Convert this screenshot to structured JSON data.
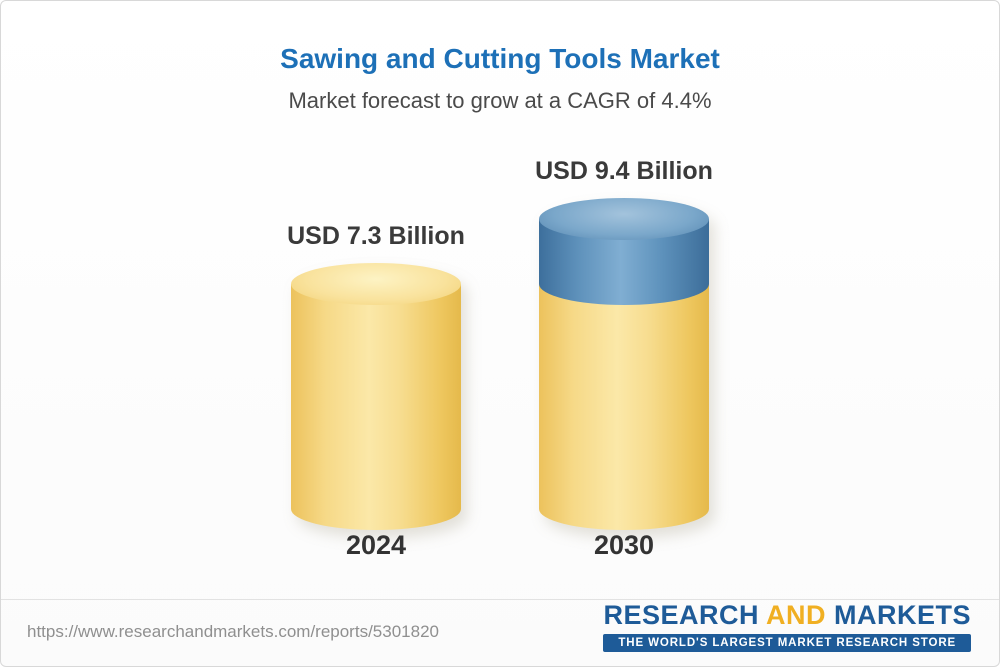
{
  "header": {
    "title": "Sawing and Cutting Tools Market",
    "subtitle": "Market forecast to grow at a CAGR of 4.4%"
  },
  "chart_data": {
    "type": "bar",
    "title": "Sawing and Cutting Tools Market",
    "subtitle": "Market forecast to grow at a CAGR of 4.4%",
    "cagr_percent": 4.4,
    "unit": "USD Billion",
    "categories": [
      "2024",
      "2030"
    ],
    "values": [
      7.3,
      9.4
    ],
    "value_labels": [
      "USD 7.3 Billion",
      "USD 9.4 Billion"
    ],
    "bar_style": "3d-cylinder",
    "colors": {
      "base_segment": "#F6D87C",
      "growth_segment": "#4E86B3"
    },
    "growth_segment": {
      "category": "2030",
      "from": 7.3,
      "to": 9.4
    },
    "grid": false,
    "legend": false
  },
  "footer": {
    "url": "https://www.researchandmarkets.com/reports/5301820",
    "logo": {
      "word1": "RESEARCH",
      "word2": "AND",
      "word3": "MARKETS",
      "tagline": "THE WORLD'S LARGEST MARKET RESEARCH STORE"
    }
  },
  "colors": {
    "title": "#1D70B7",
    "subtitle": "#4A4A4A",
    "text": "#3A3A3A",
    "logo_blue": "#1E5B98",
    "logo_gold": "#F0AF22"
  }
}
